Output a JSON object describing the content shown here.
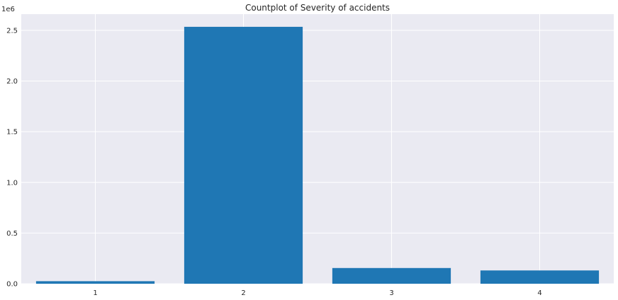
{
  "chart_data": {
    "type": "bar",
    "title": "Countplot of Severity of accidents",
    "xlabel": "",
    "ylabel": "",
    "categories": [
      "1",
      "2",
      "3",
      "4"
    ],
    "values": [
      25000,
      2535000,
      155000,
      131000
    ],
    "ylim": [
      0,
      2660000
    ],
    "y_scale_factor": 1000000,
    "y_offset_label": "1e6",
    "yticks": [
      0,
      500000,
      1000000,
      1500000,
      2000000,
      2500000
    ],
    "ytick_labels": [
      "0.0",
      "0.5",
      "1.0",
      "1.5",
      "2.0",
      "2.5"
    ],
    "grid": true,
    "legend": "none",
    "colors": {
      "bar": "#1f77b4",
      "background": "#eaeaf2",
      "grid": "#ffffff",
      "text": "#262626"
    }
  }
}
